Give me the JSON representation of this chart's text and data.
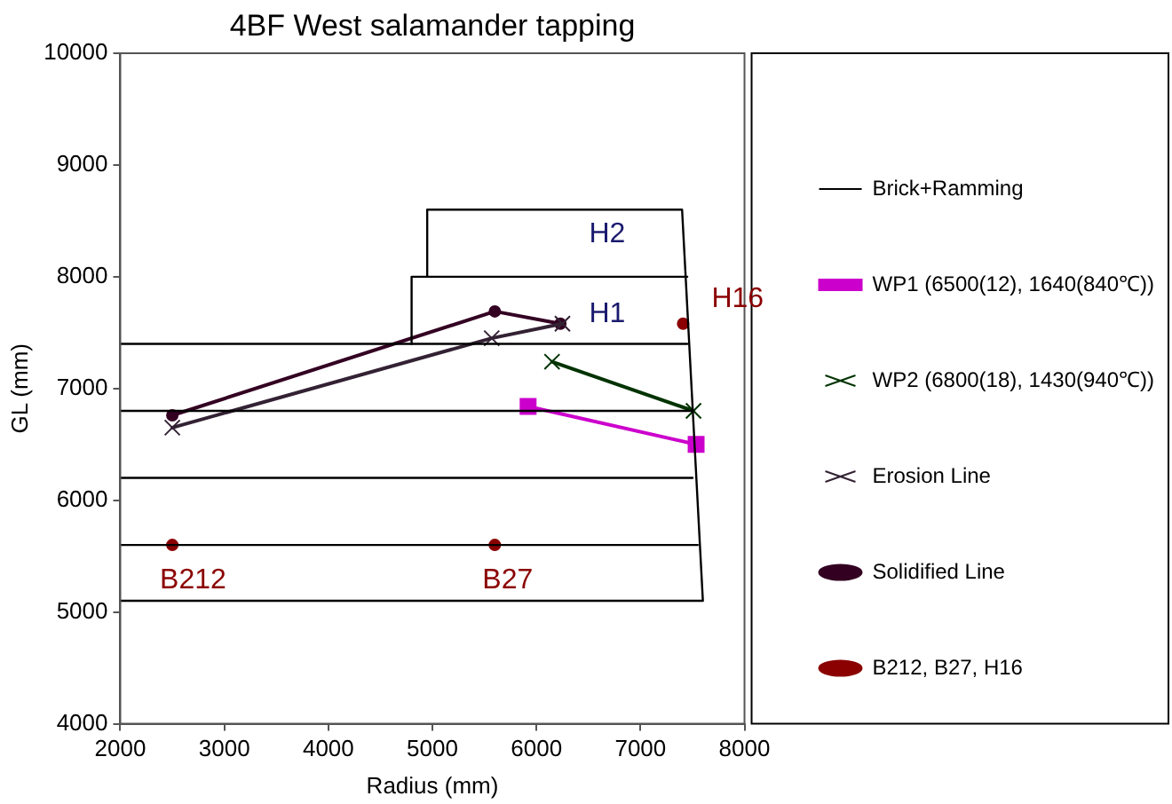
{
  "chart_data": {
    "type": "line",
    "title": "4BF West salamander tapping",
    "xlabel": "Radius (mm)",
    "ylabel": "GL (mm)",
    "xlim": [
      2000,
      8000
    ],
    "xticks": [
      2000,
      3000,
      4000,
      5000,
      6000,
      7000,
      8000
    ],
    "ylim": [
      4000,
      10000
    ],
    "yticks": [
      4000,
      5000,
      6000,
      7000,
      8000,
      9000,
      10000
    ],
    "grid": false,
    "legend": "right",
    "line_style": "solid",
    "series": [
      {
        "name": "Brick+Ramming",
        "color": "#000000",
        "marker": "none",
        "x": [
          2000,
          7600,
          7400,
          4950,
          4950
        ],
        "values": [
          5100,
          5100,
          8600,
          8600,
          8000
        ]
      },
      {
        "color": "#000000",
        "marker": "none",
        "x": [
          4800,
          4800,
          7450
        ],
        "values": [
          7400,
          8000,
          8000
        ]
      },
      {
        "color": "#000000",
        "marker": "none",
        "x": [
          2000,
          7450
        ],
        "values": [
          7400,
          7400
        ]
      },
      {
        "color": "#000000",
        "marker": "none",
        "x": [
          2000,
          7500
        ],
        "values": [
          6800,
          6800
        ]
      },
      {
        "color": "#000000",
        "marker": "none",
        "x": [
          2000,
          7500
        ],
        "values": [
          6200,
          6200
        ]
      },
      {
        "color": "#000000",
        "marker": "none",
        "x": [
          2000,
          7550
        ],
        "values": [
          5600,
          5600
        ]
      },
      {
        "name": "WP1 (6500(12), 1640(840℃))",
        "color": "#cc00cc",
        "marker": "square",
        "x": [
          5920,
          7535
        ],
        "values": [
          6840,
          6500
        ]
      },
      {
        "name": "WP2 (6800(18), 1430(940℃))",
        "color": "#003300",
        "marker": "cross",
        "x": [
          6150,
          7510
        ],
        "values": [
          7240,
          6800
        ]
      },
      {
        "name": "Erosion Line",
        "color": "#332233",
        "marker": "cross",
        "x": [
          2500,
          5570,
          6250
        ],
        "values": [
          6650,
          7450,
          7580
        ]
      },
      {
        "name": "Solidified Line",
        "color": "#330022",
        "marker": "circle",
        "x": [
          2500,
          5600,
          6230
        ],
        "values": [
          6760,
          7690,
          7580
        ]
      },
      {
        "name": "B212, B27, H16",
        "type": "scatter",
        "color": "#8b0000",
        "marker": "circle",
        "x": [
          2500,
          5600,
          7410
        ],
        "values": [
          5600,
          5600,
          7580
        ]
      }
    ],
    "annotations": [
      "H2",
      "H1",
      {
        "text": "H16",
        "x": 7410,
        "y": 7580
      },
      {
        "text": "B212",
        "x": 2500,
        "y": 5600
      },
      {
        "text": "B27",
        "x": 5600,
        "y": 5600
      }
    ]
  }
}
